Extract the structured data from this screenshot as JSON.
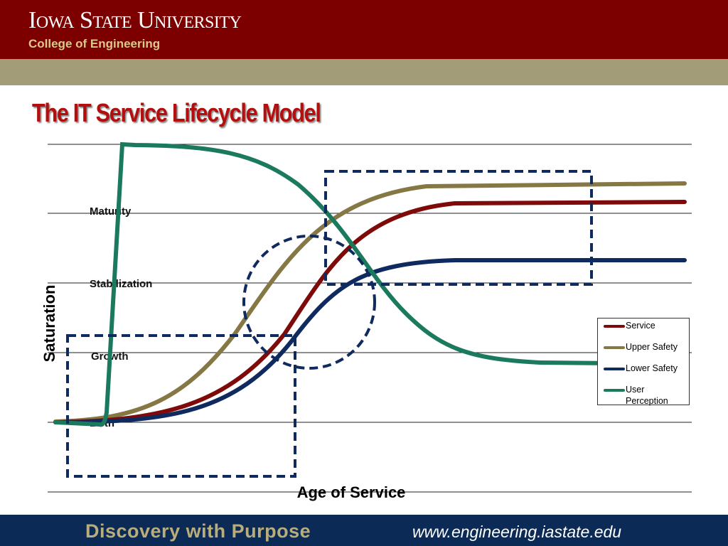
{
  "header": {
    "university": "Iowa State University",
    "college": "College of Engineering"
  },
  "slide": {
    "title": "The IT Service Lifecycle Model"
  },
  "diagram": {
    "y_axis_label": "Saturation",
    "x_axis_label": "Age of Service",
    "stages": [
      "Maturity",
      "Stabilization",
      "Growth",
      "Birth"
    ],
    "legend": [
      {
        "name": "Service",
        "color": "#7f0a0a"
      },
      {
        "name": "Upper Safety",
        "color": "#857845"
      },
      {
        "name": "Lower Safety",
        "color": "#0f2a5e"
      },
      {
        "name": "User Perception",
        "color": "#1b7a5e"
      }
    ]
  },
  "footer": {
    "tagline": "Discovery with Purpose",
    "url": "www.engineering.iastate.edu"
  }
}
